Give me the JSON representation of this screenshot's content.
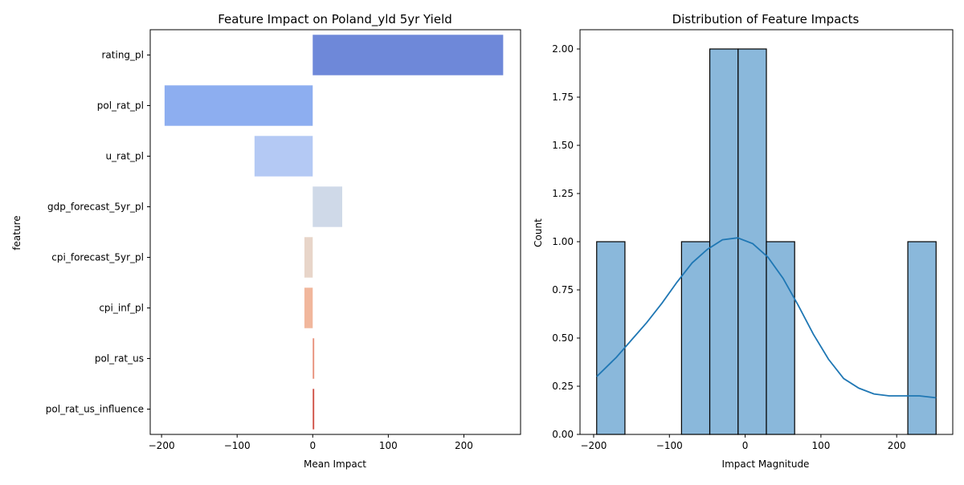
{
  "chart_data": [
    {
      "type": "bar",
      "orientation": "horizontal",
      "title": "Feature Impact on Poland_yld 5yr Yield",
      "xlabel": "Mean Impact",
      "ylabel": "feature",
      "categories": [
        "rating_pl",
        "pol_rat_pl",
        "u_rat_pl",
        "gdp_forecast_5yr_pl",
        "cpi_forecast_5yr_pl",
        "cpi_inf_pl",
        "pol_rat_us",
        "pol_rat_us_influence"
      ],
      "values": [
        252,
        -196,
        -77,
        39,
        -11,
        -11,
        2,
        2
      ],
      "colors": [
        "#6e88d9",
        "#8daef0",
        "#b4c9f4",
        "#cfd9e8",
        "#e8d5c9",
        "#f1b79c",
        "#e8907a",
        "#cf4f44"
      ],
      "xlim": [
        -215,
        275
      ],
      "xticks": [
        -200,
        -100,
        0,
        100,
        200
      ],
      "xtick_labels": [
        "−200",
        "−100",
        "0",
        "100",
        "200"
      ],
      "grid": false
    },
    {
      "type": "histogram",
      "title": "Distribution of Feature Impacts",
      "xlabel": "Impact Magnitude",
      "ylabel": "Count",
      "bin_edges": [
        -196,
        -158.7,
        -121.3,
        -84,
        -46.7,
        -9.3,
        28,
        65.3,
        102.7,
        140,
        177.3,
        214.7,
        252
      ],
      "counts": [
        1,
        0,
        0,
        1,
        2,
        2,
        1,
        0,
        0,
        0,
        0,
        1
      ],
      "bar_color": "#8ab8db",
      "kde": {
        "color": "#1f77b4",
        "x": [
          -196,
          -170,
          -150,
          -130,
          -110,
          -90,
          -70,
          -50,
          -30,
          -10,
          10,
          30,
          50,
          70,
          90,
          110,
          130,
          150,
          170,
          190,
          210,
          230,
          252
        ],
        "y": [
          0.3,
          0.4,
          0.49,
          0.58,
          0.68,
          0.79,
          0.89,
          0.96,
          1.01,
          1.02,
          0.99,
          0.92,
          0.81,
          0.67,
          0.52,
          0.39,
          0.29,
          0.24,
          0.21,
          0.2,
          0.2,
          0.2,
          0.19
        ]
      },
      "xlim": [
        -218,
        274
      ],
      "ylim": [
        0,
        2.1
      ],
      "xticks": [
        -200,
        -100,
        0,
        100,
        200
      ],
      "xtick_labels": [
        "−200",
        "−100",
        "0",
        "100",
        "200"
      ],
      "yticks": [
        0,
        0.25,
        0.5,
        0.75,
        1.0,
        1.25,
        1.5,
        1.75,
        2.0
      ],
      "ytick_labels": [
        "0.00",
        "0.25",
        "0.50",
        "0.75",
        "1.00",
        "1.25",
        "1.50",
        "1.75",
        "2.00"
      ],
      "grid": false
    }
  ]
}
